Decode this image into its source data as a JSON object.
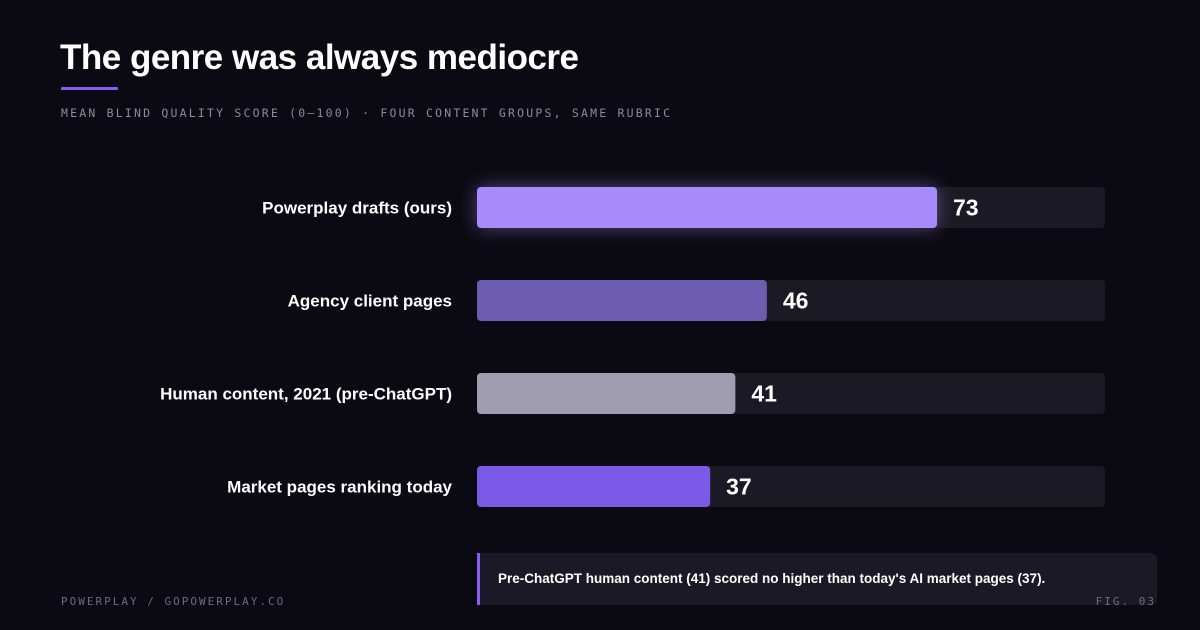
{
  "header": {
    "title": "The genre was always mediocre",
    "subtitle": "MEAN BLIND QUALITY SCORE (0–100) · FOUR CONTENT GROUPS, SAME RUBRIC"
  },
  "chart_data": {
    "type": "bar",
    "orientation": "horizontal",
    "title": "The genre was always mediocre",
    "subtitle": "MEAN BLIND QUALITY SCORE (0–100) · FOUR CONTENT GROUPS, SAME RUBRIC",
    "categories": [
      "Powerplay drafts (ours)",
      "Agency client pages",
      "Human content, 2021 (pre-ChatGPT)",
      "Market pages ranking today"
    ],
    "values": [
      73,
      46,
      41,
      37
    ],
    "value_labels": [
      "73",
      "46",
      "41",
      "37"
    ],
    "bar_colors": [
      "#a78bfa",
      "#6d5cb0",
      "#a09cb1",
      "#7c5ae8"
    ],
    "value_label_colors": [
      "#a78bfa",
      "#ffffff",
      "#ffffff",
      "#ffffff"
    ],
    "track_color": "#1b1a24",
    "xlim": [
      0,
      100
    ],
    "highlight_index": 0,
    "grid": false,
    "legend": "none"
  },
  "callout": {
    "text": "Pre-ChatGPT human content (41) scored no higher than today's AI market pages (37)."
  },
  "footer": {
    "left": "POWERPLAY / GOPOWERPLAY.CO",
    "right": "FIG. 03"
  },
  "colors": {
    "background": "#0b0a12",
    "accent": "#8b5cf6"
  }
}
